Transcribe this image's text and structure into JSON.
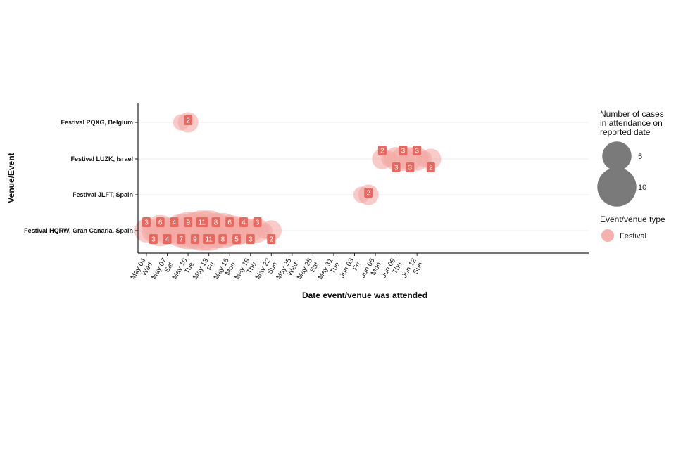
{
  "chart_data": {
    "type": "scatter",
    "xlabel": "Date event/venue was attended",
    "ylabel": "Venue/Event",
    "xlim": [
      "2021-05-03",
      "2021-06-14"
    ],
    "x_ticks": [
      {
        "date": "2021-05-04",
        "label": "May 04",
        "day": "Wed"
      },
      {
        "date": "2021-05-07",
        "label": "May 07",
        "day": "Sat"
      },
      {
        "date": "2021-05-10",
        "label": "May 10",
        "day": "Tue"
      },
      {
        "date": "2021-05-13",
        "label": "May 13",
        "day": "Fri"
      },
      {
        "date": "2021-05-16",
        "label": "May 16",
        "day": "Mon"
      },
      {
        "date": "2021-05-19",
        "label": "May 19",
        "day": "Thu"
      },
      {
        "date": "2021-05-22",
        "label": "May 22",
        "day": "Sun"
      },
      {
        "date": "2021-05-25",
        "label": "May 25",
        "day": "Wed"
      },
      {
        "date": "2021-05-28",
        "label": "May 28",
        "day": "Sat"
      },
      {
        "date": "2021-05-31",
        "label": "May 31",
        "day": "Tue"
      },
      {
        "date": "2021-06-03",
        "label": "Jun 03",
        "day": "Fri"
      },
      {
        "date": "2021-06-06",
        "label": "Jun 06",
        "day": "Mon"
      },
      {
        "date": "2021-06-09",
        "label": "Jun 09",
        "day": "Thu"
      },
      {
        "date": "2021-06-12",
        "label": "Jun 12",
        "day": "Sun"
      }
    ],
    "categories": [
      "Festival PQXG, Belgium",
      "Festival LUZK, Israel",
      "Festival JLFT, Spain",
      "Festival HQRW, Gran Canaria, Spain"
    ],
    "grid": "horizontal",
    "legend_position": "right",
    "legend": {
      "size_title": "Number of cases\nin attendance on\nreported date",
      "size_entries": [
        {
          "label": "5",
          "value": 5
        },
        {
          "label": "10",
          "value": 10
        }
      ],
      "color_title": "Event/venue type",
      "color_entries": [
        {
          "label": "Festival",
          "color": "#f4a8a4"
        }
      ]
    },
    "bubble_color": "#f4a8a4",
    "label_color": "#e8685f",
    "points": [
      {
        "venue": "Festival PQXG, Belgium",
        "date": "2021-05-09",
        "value": 1
      },
      {
        "venue": "Festival PQXG, Belgium",
        "date": "2021-05-10",
        "value": 2,
        "label": "2"
      },
      {
        "venue": "Festival LUZK, Israel",
        "date": "2021-06-07",
        "value": 2,
        "label": "2"
      },
      {
        "venue": "Festival LUZK, Israel",
        "date": "2021-06-08",
        "value": 1
      },
      {
        "venue": "Festival LUZK, Israel",
        "date": "2021-06-09",
        "value": 3,
        "label": "3"
      },
      {
        "venue": "Festival LUZK, Israel",
        "date": "2021-06-10",
        "value": 3,
        "label": "3"
      },
      {
        "venue": "Festival LUZK, Israel",
        "date": "2021-06-11",
        "value": 3,
        "label": "3"
      },
      {
        "venue": "Festival LUZK, Israel",
        "date": "2021-06-12",
        "value": 3,
        "label": "3"
      },
      {
        "venue": "Festival LUZK, Israel",
        "date": "2021-06-13",
        "value": 1
      },
      {
        "venue": "Festival LUZK, Israel",
        "date": "2021-06-14",
        "value": 2,
        "label": "2"
      },
      {
        "venue": "Festival JLFT, Spain",
        "date": "2021-06-04",
        "value": 1
      },
      {
        "venue": "Festival JLFT, Spain",
        "date": "2021-06-05",
        "value": 2,
        "label": "2"
      },
      {
        "venue": "Festival HQRW, Gran Canaria, Spain",
        "date": "2021-05-04",
        "value": 3,
        "label": "3"
      },
      {
        "venue": "Festival HQRW, Gran Canaria, Spain",
        "date": "2021-05-05",
        "value": 3,
        "label": "3"
      },
      {
        "venue": "Festival HQRW, Gran Canaria, Spain",
        "date": "2021-05-06",
        "value": 6,
        "label": "6"
      },
      {
        "venue": "Festival HQRW, Gran Canaria, Spain",
        "date": "2021-05-07",
        "value": 4,
        "label": "4"
      },
      {
        "venue": "Festival HQRW, Gran Canaria, Spain",
        "date": "2021-05-08",
        "value": 4,
        "label": "4"
      },
      {
        "venue": "Festival HQRW, Gran Canaria, Spain",
        "date": "2021-05-09",
        "value": 7,
        "label": "7"
      },
      {
        "venue": "Festival HQRW, Gran Canaria, Spain",
        "date": "2021-05-10",
        "value": 9,
        "label": "9"
      },
      {
        "venue": "Festival HQRW, Gran Canaria, Spain",
        "date": "2021-05-11",
        "value": 9,
        "label": "9"
      },
      {
        "venue": "Festival HQRW, Gran Canaria, Spain",
        "date": "2021-05-12",
        "value": 11,
        "label": "11"
      },
      {
        "venue": "Festival HQRW, Gran Canaria, Spain",
        "date": "2021-05-13",
        "value": 11,
        "label": "11"
      },
      {
        "venue": "Festival HQRW, Gran Canaria, Spain",
        "date": "2021-05-14",
        "value": 8,
        "label": "8"
      },
      {
        "venue": "Festival HQRW, Gran Canaria, Spain",
        "date": "2021-05-15",
        "value": 8,
        "label": "8"
      },
      {
        "venue": "Festival HQRW, Gran Canaria, Spain",
        "date": "2021-05-16",
        "value": 6,
        "label": "6"
      },
      {
        "venue": "Festival HQRW, Gran Canaria, Spain",
        "date": "2021-05-17",
        "value": 5,
        "label": "5"
      },
      {
        "venue": "Festival HQRW, Gran Canaria, Spain",
        "date": "2021-05-18",
        "value": 4,
        "label": "4"
      },
      {
        "venue": "Festival HQRW, Gran Canaria, Spain",
        "date": "2021-05-19",
        "value": 3,
        "label": "3"
      },
      {
        "venue": "Festival HQRW, Gran Canaria, Spain",
        "date": "2021-05-20",
        "value": 3,
        "label": "3"
      },
      {
        "venue": "Festival HQRW, Gran Canaria, Spain",
        "date": "2021-05-21",
        "value": 1
      },
      {
        "venue": "Festival HQRW, Gran Canaria, Spain",
        "date": "2021-05-22",
        "value": 2,
        "label": "2"
      }
    ]
  }
}
